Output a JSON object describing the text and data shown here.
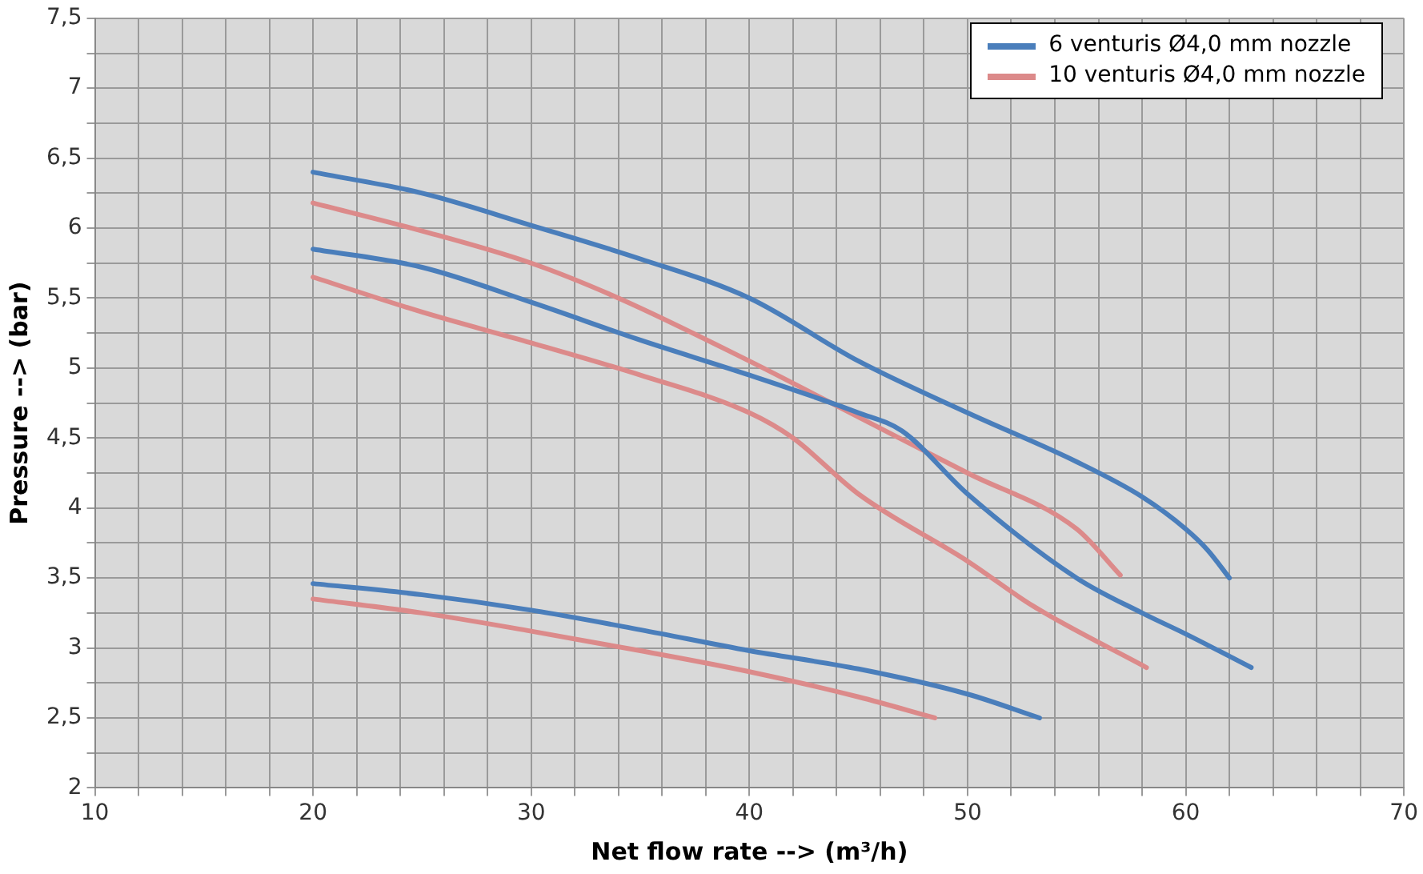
{
  "chart_data": {
    "type": "line",
    "xlabel": "Net flow rate --> (m³/h)",
    "ylabel": "Pressure --> (bar)",
    "xlim": [
      10,
      70
    ],
    "ylim": [
      2,
      7.5
    ],
    "xticks": [
      10,
      {
        "value": 12,
        "label": null
      },
      {
        "value": 14,
        "label": null
      },
      {
        "value": 16,
        "label": null
      },
      {
        "value": 18,
        "label": null
      },
      20,
      {
        "value": 22,
        "label": null
      },
      {
        "value": 24,
        "label": null
      },
      {
        "value": 26,
        "label": null
      },
      {
        "value": 28,
        "label": null
      },
      30,
      {
        "value": 32,
        "label": null
      },
      {
        "value": 34,
        "label": null
      },
      {
        "value": 36,
        "label": null
      },
      {
        "value": 38,
        "label": null
      },
      40,
      {
        "value": 42,
        "label": null
      },
      {
        "value": 44,
        "label": null
      },
      {
        "value": 46,
        "label": null
      },
      {
        "value": 48,
        "label": null
      },
      50,
      {
        "value": 52,
        "label": null
      },
      {
        "value": 54,
        "label": null
      },
      {
        "value": 56,
        "label": null
      },
      {
        "value": 58,
        "label": null
      },
      60,
      {
        "value": 62,
        "label": null
      },
      {
        "value": 64,
        "label": null
      },
      {
        "value": 66,
        "label": null
      },
      {
        "value": 68,
        "label": null
      },
      70
    ],
    "yticks": [
      2,
      {
        "value": 2.25,
        "label": null
      },
      {
        "value": 2.5,
        "label": "2,5"
      },
      {
        "value": 2.75,
        "label": null
      },
      3,
      {
        "value": 3.25,
        "label": null
      },
      {
        "value": 3.5,
        "label": "3,5"
      },
      {
        "value": 3.75,
        "label": null
      },
      4,
      {
        "value": 4.25,
        "label": null
      },
      {
        "value": 4.5,
        "label": "4,5"
      },
      {
        "value": 4.75,
        "label": null
      },
      5,
      {
        "value": 5.25,
        "label": null
      },
      {
        "value": 5.5,
        "label": "5,5"
      },
      {
        "value": 5.75,
        "label": null
      },
      6,
      {
        "value": 6.25,
        "label": null
      },
      {
        "value": 6.5,
        "label": "6,5"
      },
      {
        "value": 6.75,
        "label": null
      },
      7,
      {
        "value": 7.25,
        "label": null
      },
      {
        "value": 7.5,
        "label": "7,5"
      }
    ],
    "grid": true,
    "legend": "top right",
    "marker": "none",
    "line_style": "solid",
    "series": [
      {
        "name": "6 venturis Ø4,0 mm nozzle",
        "color": "#4a7ebb",
        "x": [
          20,
          25,
          30,
          35,
          40,
          45,
          50,
          55,
          58,
          60,
          61,
          62
        ],
        "values": [
          6.4,
          6.25,
          6.02,
          5.78,
          5.5,
          5.05,
          4.68,
          4.33,
          4.08,
          3.85,
          3.7,
          3.5
        ]
      },
      {
        "color": "#4a7ebb",
        "x": [
          20,
          25,
          30,
          35,
          40,
          45,
          47,
          50,
          55,
          58,
          60,
          63
        ],
        "values": [
          5.85,
          5.72,
          5.47,
          5.2,
          4.95,
          4.68,
          4.55,
          4.1,
          3.5,
          3.25,
          3.1,
          2.86
        ]
      },
      {
        "color": "#4a7ebb",
        "x": [
          20,
          25,
          30,
          35,
          40,
          45,
          50,
          53.3
        ],
        "values": [
          3.46,
          3.38,
          3.27,
          3.13,
          2.98,
          2.85,
          2.67,
          2.5
        ]
      },
      {
        "name": "10 venturis Ø4,0 mm nozzle",
        "color": "#dc8a8a",
        "x": [
          20,
          25,
          30,
          34,
          40,
          45,
          50,
          55,
          57
        ],
        "values": [
          6.18,
          5.98,
          5.75,
          5.5,
          5.05,
          4.65,
          4.25,
          3.85,
          3.52
        ]
      },
      {
        "color": "#dc8a8a",
        "x": [
          20,
          25,
          30,
          35,
          40,
          42,
          45,
          50,
          53,
          58.2
        ],
        "values": [
          5.65,
          5.4,
          5.18,
          4.95,
          4.68,
          4.5,
          4.1,
          3.62,
          3.3,
          2.86
        ]
      },
      {
        "color": "#dc8a8a",
        "x": [
          20,
          25,
          30,
          35,
          40,
          45,
          48.5
        ],
        "values": [
          3.35,
          3.25,
          3.12,
          2.98,
          2.83,
          2.65,
          2.5
        ]
      }
    ]
  }
}
